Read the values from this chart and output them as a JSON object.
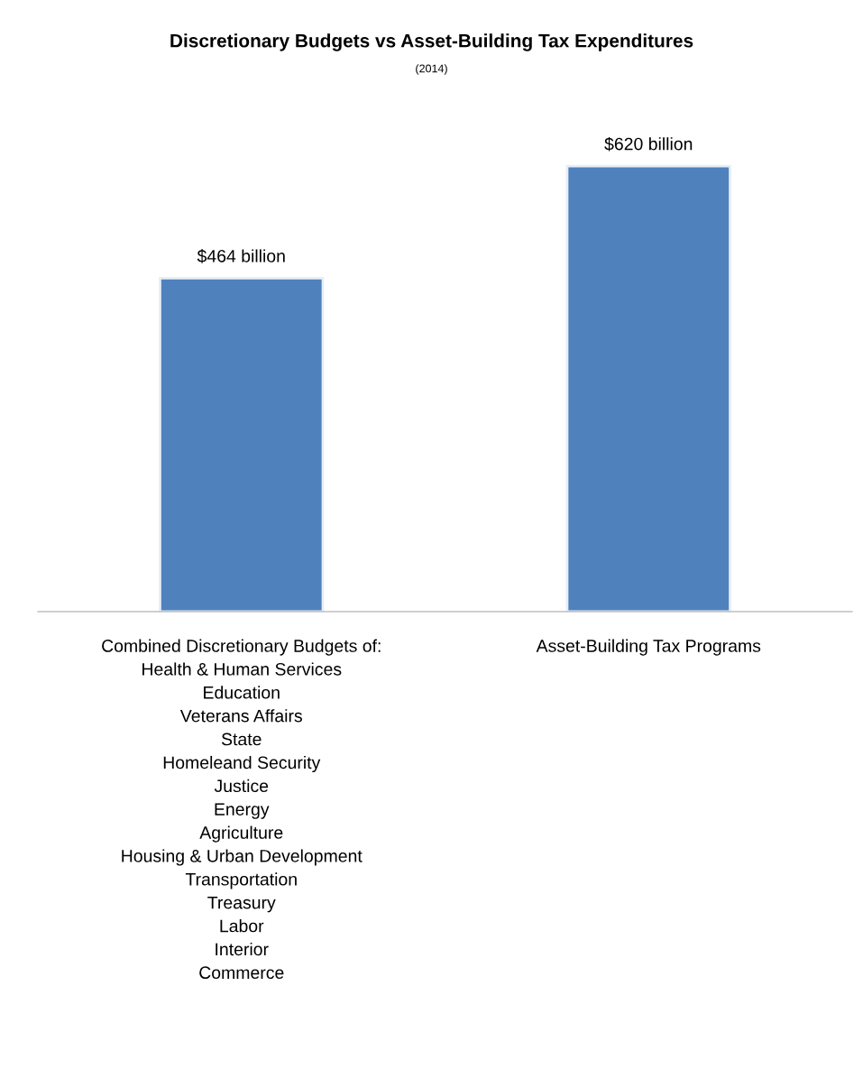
{
  "chart_data": {
    "type": "bar",
    "title": "Discretionary Budgets vs Asset-Building Tax Expenditures",
    "subtitle": "(2014)",
    "categories": [
      "Combined Discretionary Budgets of:\nHealth & Human Services\nEducation\nVeterans Affairs\nState\nHomeleand Security\nJustice\nEnergy\nAgriculture\nHousing & Urban Development\nTransportation\nTreasury\nLabor\nInterior\nCommerce",
      "Asset-Building Tax Programs"
    ],
    "values": [
      464,
      620
    ],
    "value_labels": [
      "$464 billion",
      "$620 billion"
    ],
    "color": "#4f81bd",
    "tick_labels": "x",
    "grid": false
  }
}
